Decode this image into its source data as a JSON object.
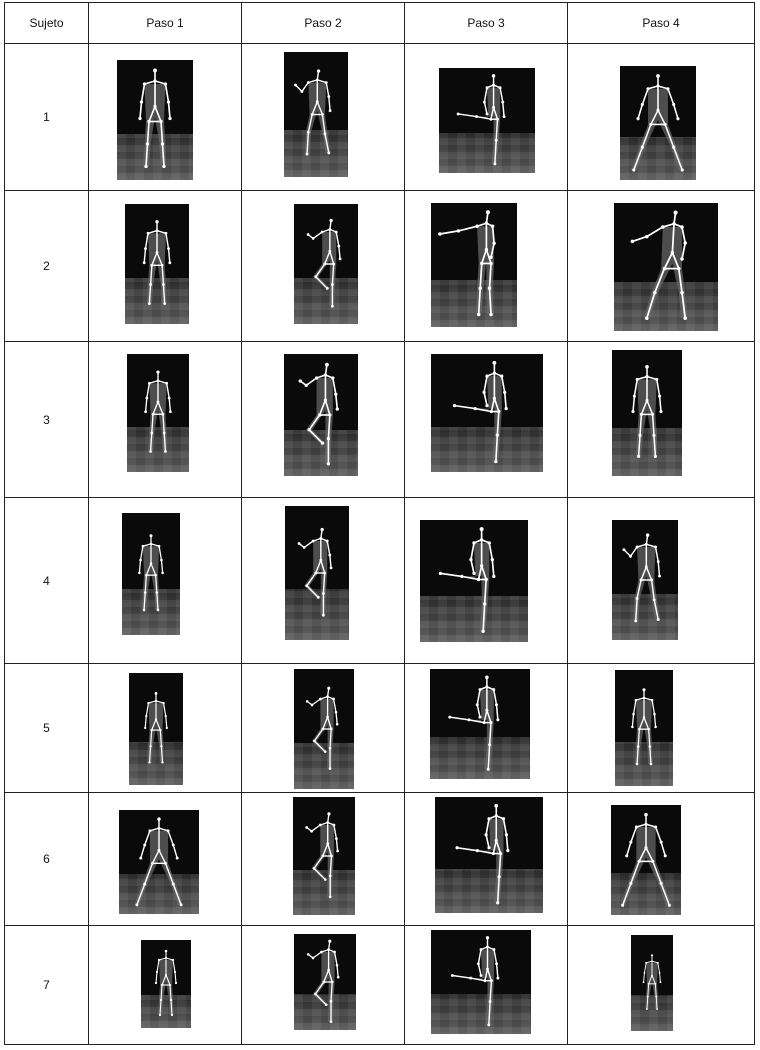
{
  "table": {
    "headers": [
      "Sujeto",
      "Paso 1",
      "Paso 2",
      "Paso 3",
      "Paso 4"
    ],
    "rows": [
      {
        "subject": "1",
        "poses": [
          "arms-down-stand",
          "arm-raised-step",
          "leg-kick-side",
          "wide-stance"
        ]
      },
      {
        "subject": "2",
        "poses": [
          "arms-down-stand",
          "knee-raise",
          "arm-extended-lean",
          "wide-stance-lean"
        ]
      },
      {
        "subject": "3",
        "poses": [
          "arms-down-stand",
          "knee-raise",
          "leg-kick-side",
          "arms-down-stand"
        ]
      },
      {
        "subject": "4",
        "poses": [
          "arms-down-stand",
          "knee-raise",
          "leg-kick-side",
          "arm-raised-step"
        ]
      },
      {
        "subject": "5",
        "poses": [
          "arms-down-stand",
          "knee-raise",
          "leg-kick-side",
          "arms-down-stand"
        ]
      },
      {
        "subject": "6",
        "poses": [
          "wide-stance",
          "knee-raise",
          "leg-kick-side",
          "wide-stance"
        ]
      },
      {
        "subject": "7",
        "poses": [
          "arms-down-stand",
          "knee-raise",
          "leg-kick-side",
          "arms-down-stand"
        ]
      }
    ]
  },
  "colors": {
    "frame_background": "#0a0a0a",
    "skeleton": "#ffffff",
    "grid_line": "#222222"
  }
}
